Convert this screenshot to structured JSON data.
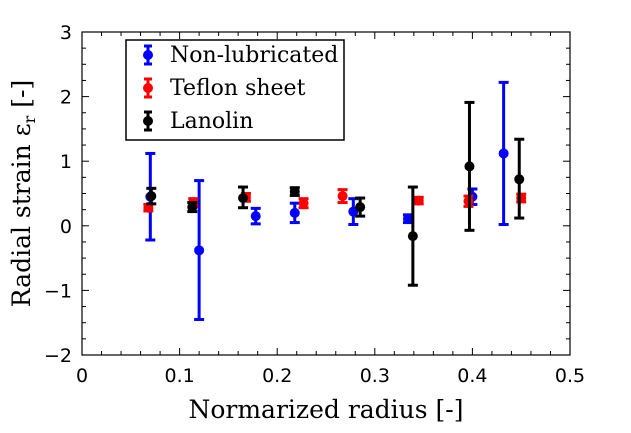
{
  "chart_data": {
    "type": "scatter",
    "xlabel": "Normarized radius [-]",
    "ylabel": "Radial strain ε",
    "ylabel_sub": "r",
    "ylabel_unit": "[-]",
    "xlim": [
      0,
      0.5
    ],
    "ylim": [
      -2,
      3
    ],
    "x_ticks": [
      0,
      0.1,
      0.2,
      0.3,
      0.4,
      0.5
    ],
    "x_tick_labels": [
      "0",
      "0.1",
      "0.2",
      "0.3",
      "0.4",
      "0.5"
    ],
    "y_ticks": [
      -2,
      -1,
      0,
      1,
      2,
      3
    ],
    "y_tick_labels": [
      "−2",
      "−1",
      "0",
      "1",
      "2",
      "3"
    ],
    "grid": false,
    "legend_position": "top-left",
    "series": [
      {
        "name": "Non-lubricated",
        "color": "#0000ff",
        "points": [
          {
            "x": 0.07,
            "y": 0.45,
            "low": -0.22,
            "high": 1.12
          },
          {
            "x": 0.12,
            "y": -0.38,
            "low": -1.45,
            "high": 0.7
          },
          {
            "x": 0.178,
            "y": 0.15,
            "low": 0.03,
            "high": 0.27
          },
          {
            "x": 0.218,
            "y": 0.2,
            "low": 0.05,
            "high": 0.35
          },
          {
            "x": 0.278,
            "y": 0.22,
            "low": 0.02,
            "high": 0.42
          },
          {
            "x": 0.334,
            "y": 0.11,
            "low": 0.05,
            "high": 0.17
          },
          {
            "x": 0.4,
            "y": 0.45,
            "low": 0.33,
            "high": 0.57
          },
          {
            "x": 0.432,
            "y": 1.12,
            "low": 0.02,
            "high": 2.22
          }
        ]
      },
      {
        "name": "Teflon sheet",
        "color": "#ff0000",
        "points": [
          {
            "x": 0.068,
            "y": 0.28,
            "low": 0.23,
            "high": 0.33
          },
          {
            "x": 0.114,
            "y": 0.36,
            "low": 0.3,
            "high": 0.42
          },
          {
            "x": 0.168,
            "y": 0.44,
            "low": 0.38,
            "high": 0.5
          },
          {
            "x": 0.227,
            "y": 0.35,
            "low": 0.28,
            "high": 0.42
          },
          {
            "x": 0.267,
            "y": 0.46,
            "low": 0.36,
            "high": 0.56
          },
          {
            "x": 0.345,
            "y": 0.39,
            "low": 0.34,
            "high": 0.44
          },
          {
            "x": 0.396,
            "y": 0.38,
            "low": 0.3,
            "high": 0.46
          },
          {
            "x": 0.45,
            "y": 0.43,
            "low": 0.37,
            "high": 0.49
          }
        ]
      },
      {
        "name": "Lanolin",
        "color": "#000000",
        "points": [
          {
            "x": 0.071,
            "y": 0.46,
            "low": 0.34,
            "high": 0.58
          },
          {
            "x": 0.113,
            "y": 0.29,
            "low": 0.22,
            "high": 0.36
          },
          {
            "x": 0.165,
            "y": 0.43,
            "low": 0.28,
            "high": 0.6
          },
          {
            "x": 0.218,
            "y": 0.53,
            "low": 0.47,
            "high": 0.59
          },
          {
            "x": 0.285,
            "y": 0.29,
            "low": 0.15,
            "high": 0.43
          },
          {
            "x": 0.339,
            "y": -0.16,
            "low": -0.92,
            "high": 0.6
          },
          {
            "x": 0.397,
            "y": 0.92,
            "low": -0.07,
            "high": 1.91
          },
          {
            "x": 0.448,
            "y": 0.72,
            "low": 0.12,
            "high": 1.34
          }
        ]
      }
    ]
  }
}
